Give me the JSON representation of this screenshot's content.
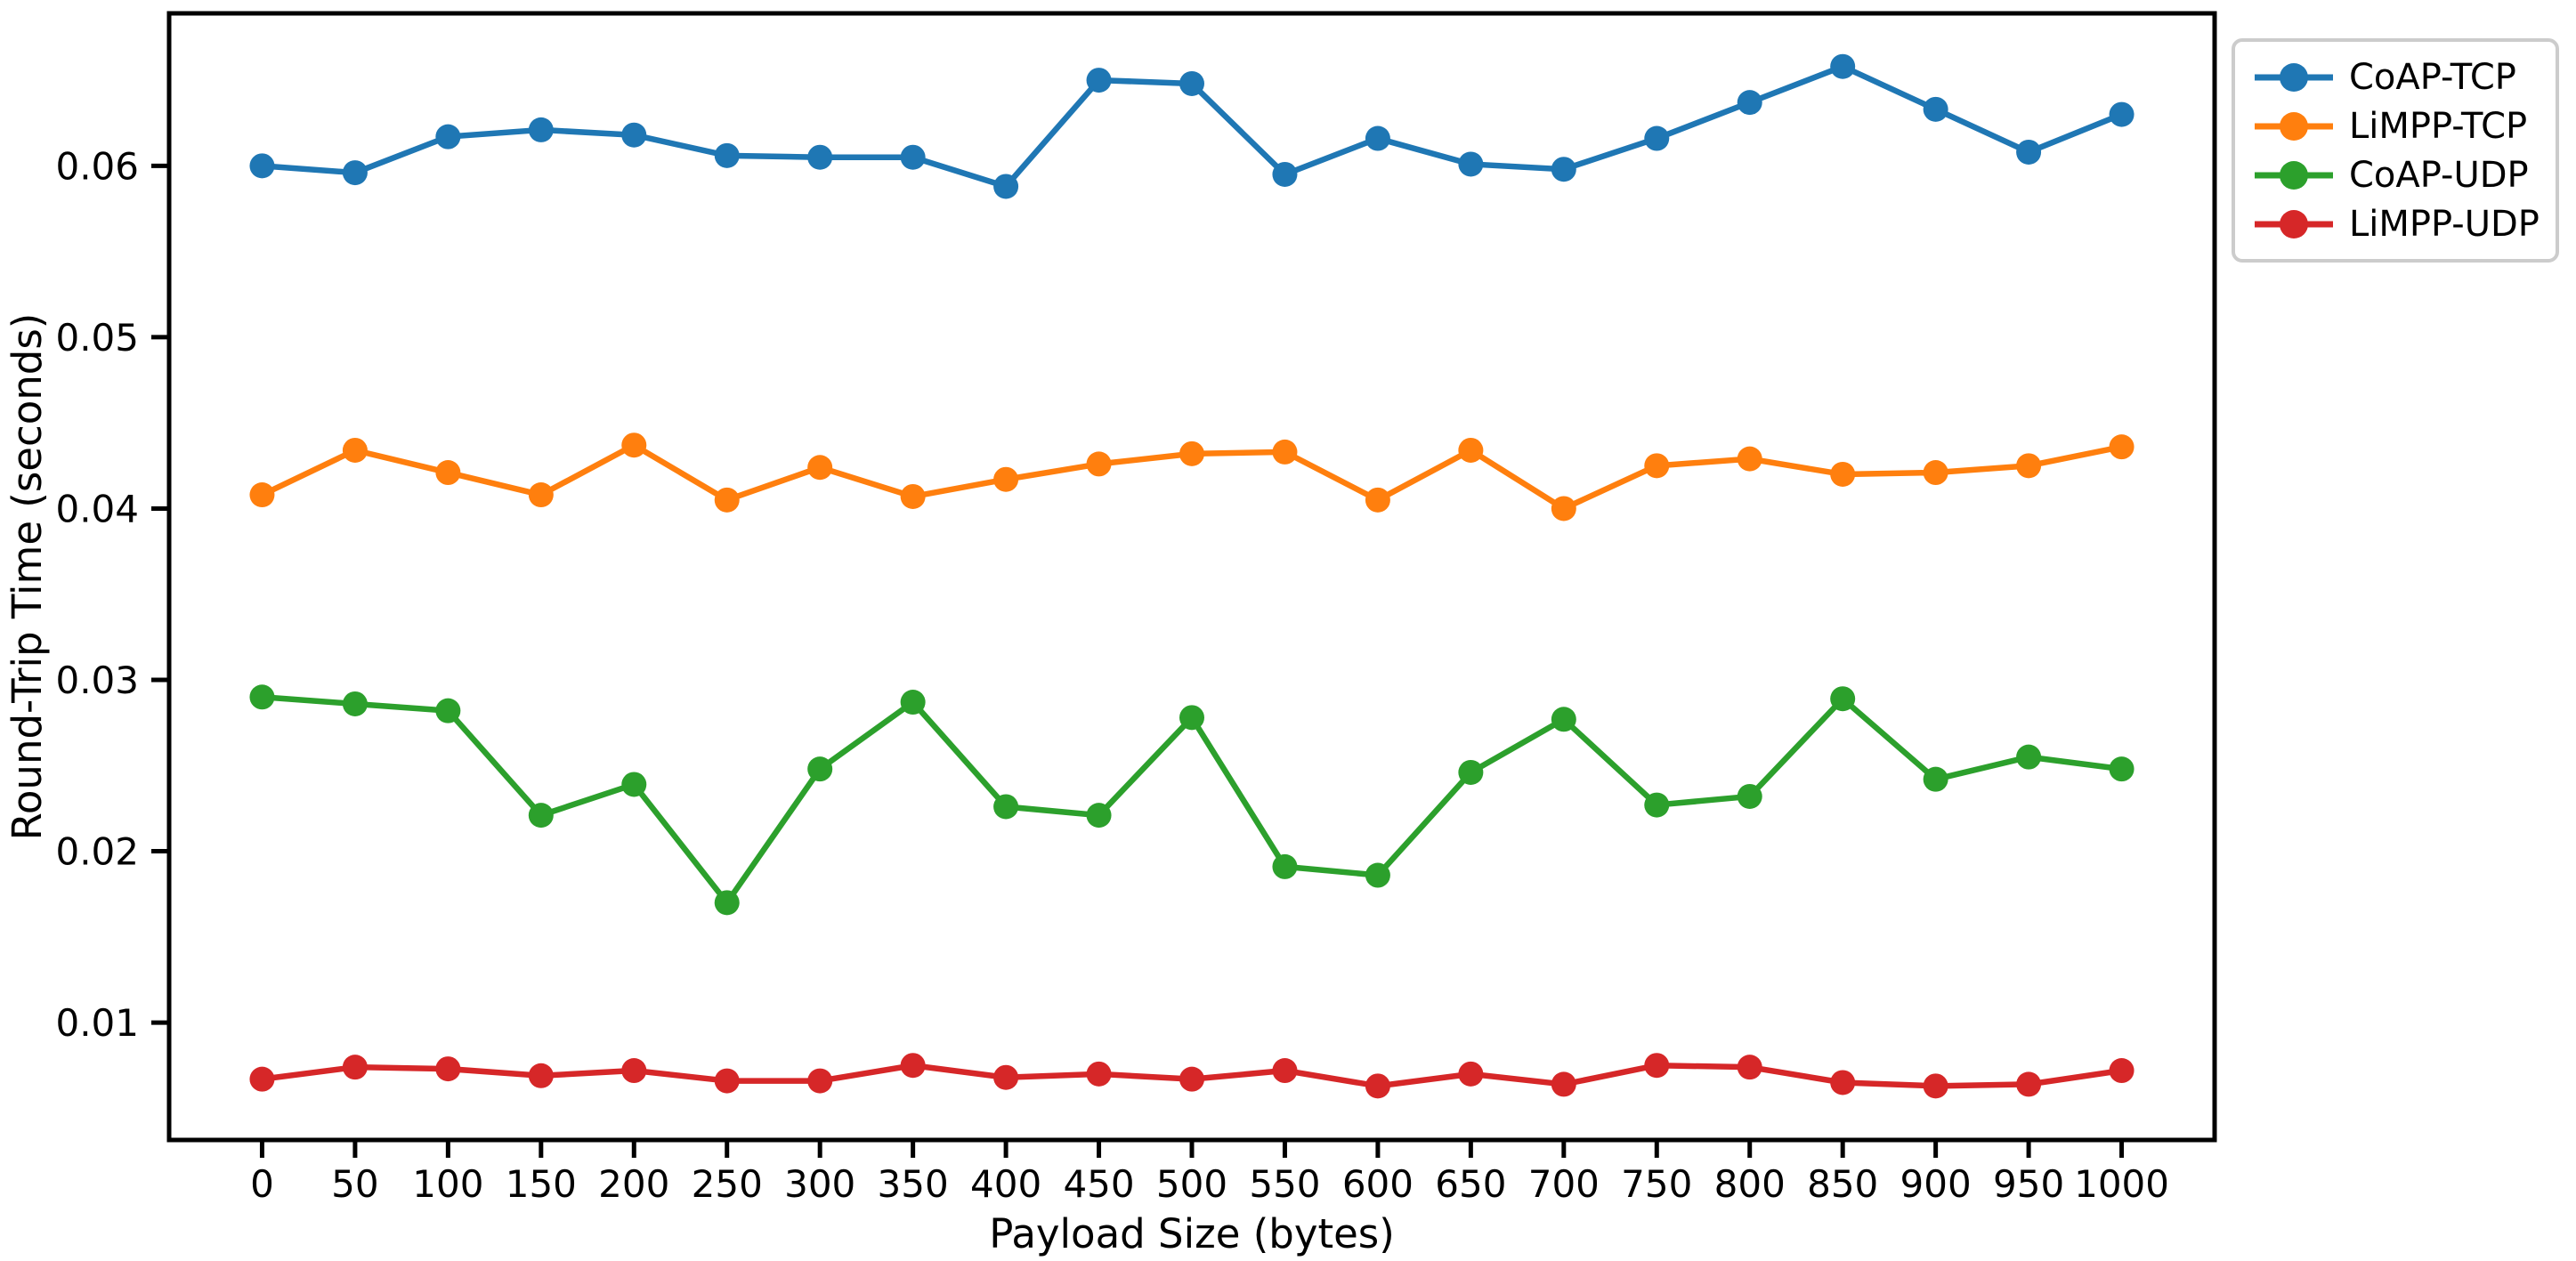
{
  "chart_data": {
    "type": "line",
    "title": "",
    "xlabel": "Payload Size (bytes)",
    "ylabel": "Round-Trip Time (seconds)",
    "x": [
      0,
      50,
      100,
      150,
      200,
      250,
      300,
      350,
      400,
      450,
      500,
      550,
      600,
      650,
      700,
      750,
      800,
      850,
      900,
      950,
      1000
    ],
    "series": [
      {
        "name": "CoAP-TCP",
        "color": "#1f77b4",
        "values": [
          0.06,
          0.0596,
          0.0617,
          0.0621,
          0.0618,
          0.0606,
          0.0605,
          0.0605,
          0.0588,
          0.065,
          0.0648,
          0.0595,
          0.0616,
          0.0601,
          0.0598,
          0.0616,
          0.0637,
          0.0658,
          0.0633,
          0.0608,
          0.063
        ]
      },
      {
        "name": "LiMPP-TCP",
        "color": "#ff7f0e",
        "values": [
          0.0408,
          0.0434,
          0.0421,
          0.0408,
          0.0437,
          0.0405,
          0.0424,
          0.0407,
          0.0417,
          0.0426,
          0.0432,
          0.0433,
          0.0405,
          0.0434,
          0.04,
          0.0425,
          0.0429,
          0.042,
          0.0421,
          0.0425,
          0.0436
        ]
      },
      {
        "name": "CoAP-UDP",
        "color": "#2ca02c",
        "values": [
          0.029,
          0.0286,
          0.0282,
          0.0221,
          0.0239,
          0.017,
          0.0248,
          0.0287,
          0.0226,
          0.0221,
          0.0278,
          0.0191,
          0.0186,
          0.0246,
          0.0277,
          0.0227,
          0.0232,
          0.0289,
          0.0242,
          0.0255,
          0.0248
        ]
      },
      {
        "name": "LiMPP-UDP",
        "color": "#d62728",
        "values": [
          0.0067,
          0.0074,
          0.0073,
          0.0069,
          0.0072,
          0.0066,
          0.0066,
          0.0075,
          0.0068,
          0.007,
          0.0067,
          0.0072,
          0.0063,
          0.007,
          0.0064,
          0.0075,
          0.0074,
          0.0065,
          0.0063,
          0.0064,
          0.0072
        ]
      }
    ],
    "xticks": [
      0,
      50,
      100,
      150,
      200,
      250,
      300,
      350,
      400,
      450,
      500,
      550,
      600,
      650,
      700,
      750,
      800,
      850,
      900,
      950,
      1000
    ],
    "xtick_labels": [
      "0",
      "50",
      "100",
      "150",
      "200",
      "250",
      "300",
      "350",
      "400",
      "450",
      "500",
      "550",
      "600",
      "650",
      "700",
      "750",
      "800",
      "850",
      "900",
      "950",
      "1000"
    ],
    "yticks": [
      0.01,
      0.02,
      0.03,
      0.04,
      0.05,
      0.06
    ],
    "ytick_labels": [
      "0.01",
      "0.02",
      "0.03",
      "0.04",
      "0.05",
      "0.06"
    ],
    "xlim": [
      -50,
      1050
    ],
    "ylim": [
      0.00315,
      0.0689
    ],
    "grid": false,
    "marker": "circle",
    "legend_position": "outside-upper-right",
    "background_color": "#ffffff",
    "axis_color": "#000000"
  }
}
